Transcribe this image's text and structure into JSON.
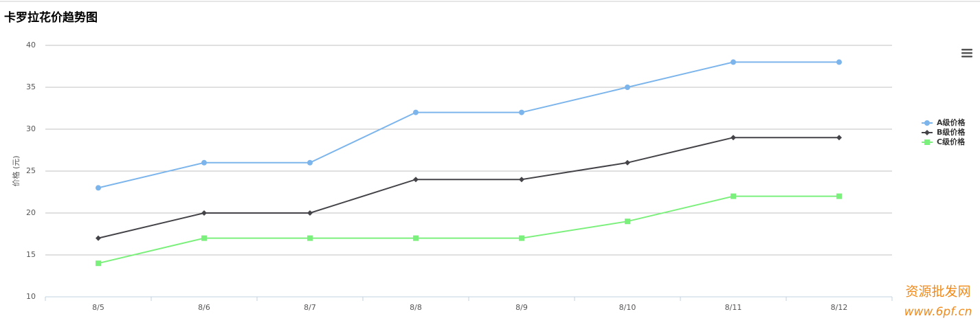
{
  "chart_data": {
    "type": "line",
    "title": "卡罗拉花价趋势图",
    "y_label": "价格 (元)",
    "categories": [
      "8/5",
      "8/6",
      "8/7",
      "8/8",
      "8/9",
      "8/10",
      "8/11",
      "8/12"
    ],
    "series": [
      {
        "name": "A级价格",
        "color": "#7cb5ec",
        "marker": "circle",
        "values": [
          23,
          26,
          26,
          32,
          32,
          35,
          38,
          38
        ]
      },
      {
        "name": "B级价格",
        "color": "#434348",
        "marker": "diamond",
        "values": [
          17,
          20,
          20,
          24,
          24,
          26,
          29,
          29
        ]
      },
      {
        "name": "C级价格",
        "color": "#7cf07c",
        "marker": "square",
        "values": [
          14,
          17,
          17,
          17,
          17,
          19,
          22,
          22
        ]
      }
    ],
    "ylim": [
      10,
      40
    ],
    "yticks": [
      10,
      15,
      20,
      25,
      30,
      35,
      40
    ],
    "grid": true,
    "legend": "right",
    "watermark": [
      "资源批发网",
      "www.6pf.cn"
    ]
  }
}
